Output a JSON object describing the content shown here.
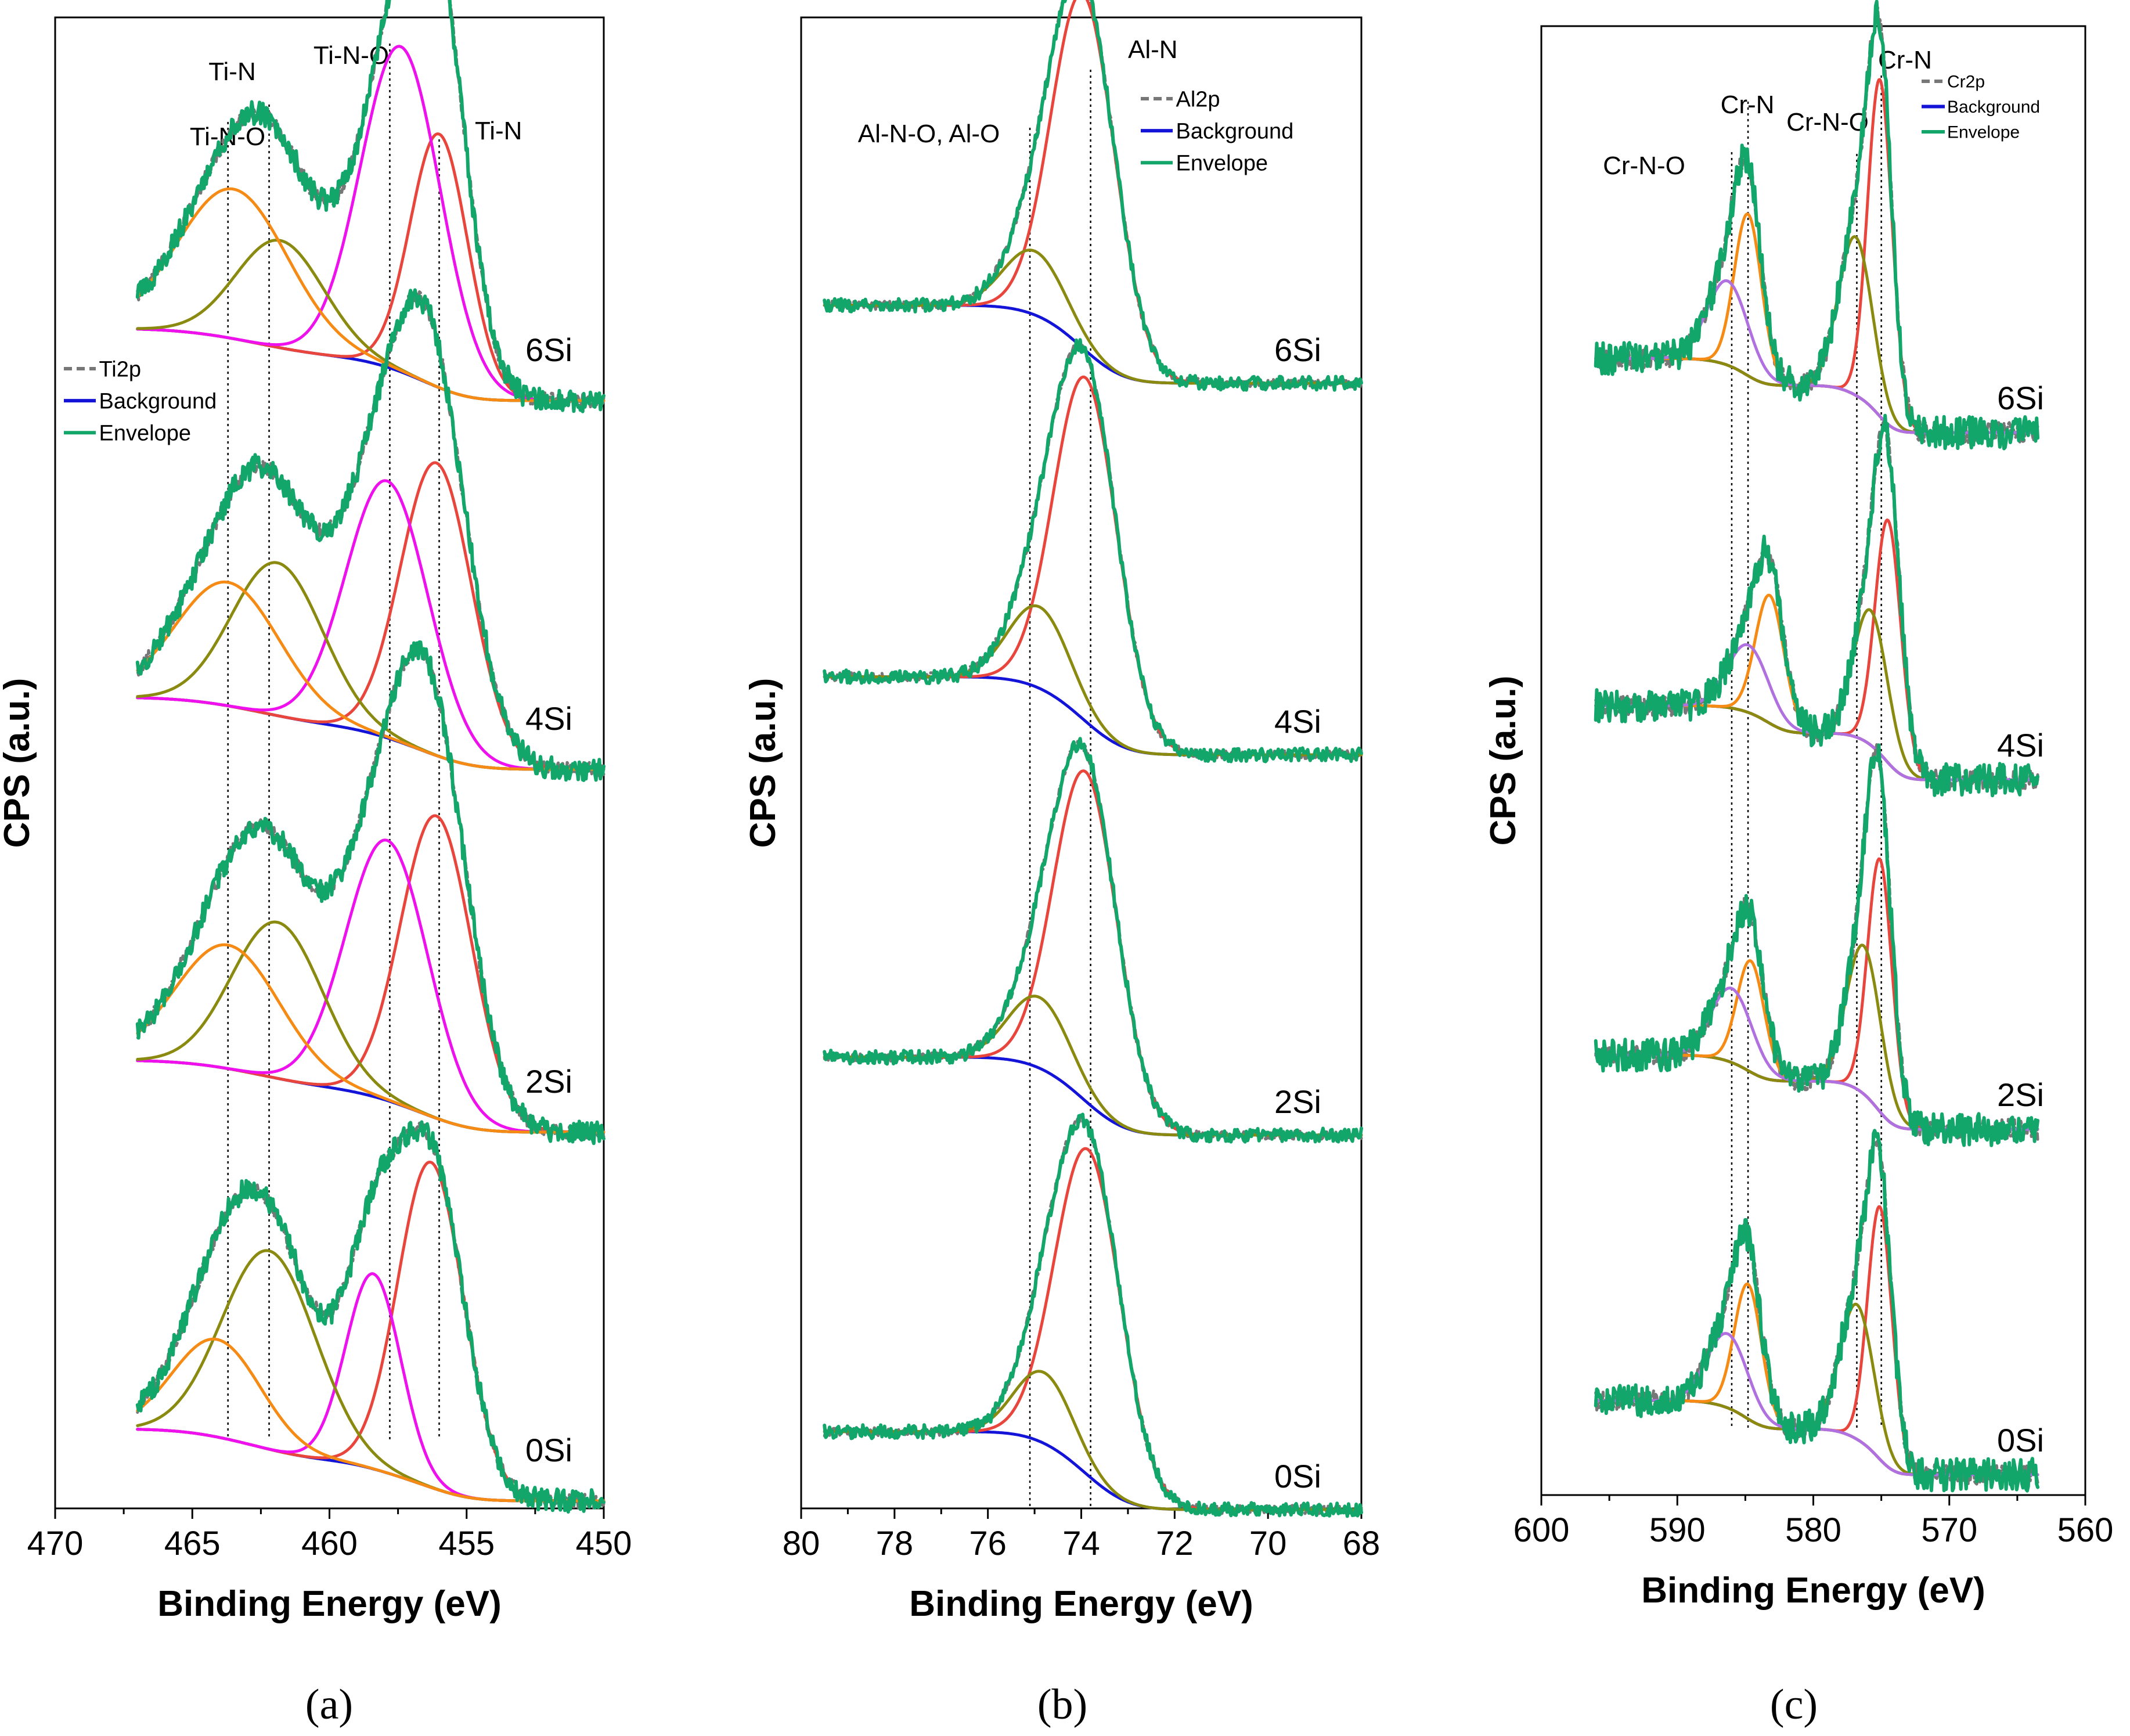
{
  "chart_data": [
    {
      "id": "a",
      "type": "line",
      "caption": "(a)",
      "xlabel": "Binding Energy (eV)",
      "ylabel": "CPS (a.u.)",
      "xlim": [
        470,
        450
      ],
      "xticks": [
        470,
        465,
        460,
        455,
        450
      ],
      "xtick_labels": [
        "470",
        "465",
        "460",
        "455",
        "450"
      ],
      "legend": [
        {
          "label": "Ti2p",
          "color": "#777777",
          "style": "dashed"
        },
        {
          "label": "Background",
          "color": "#1414d8",
          "style": "solid"
        },
        {
          "label": "Envelope",
          "color": "#12a66a",
          "style": "solid"
        }
      ],
      "annotations": [
        {
          "label": "Ti-N-O",
          "x": 463.7
        },
        {
          "label": "Ti-N",
          "x": 462.2
        },
        {
          "label": "Ti-N-O",
          "x": 457.8
        },
        {
          "label": "Ti-N",
          "x": 456.0
        }
      ],
      "range": [
        467.0,
        450.0
      ],
      "noise": 0.022,
      "samples": [
        {
          "label": "6Si",
          "peaks": [
            {
              "center": 456.0,
              "height": 0.78,
              "width": 1.05,
              "color": "#e8453c"
            },
            {
              "center": 457.4,
              "height": 1.0,
              "width": 1.45,
              "color": "#ee11ee"
            },
            {
              "center": 461.8,
              "height": 0.33,
              "width": 1.6,
              "color": "#8a8a10"
            },
            {
              "center": 463.5,
              "height": 0.46,
              "width": 2.0,
              "color": "#f58a14"
            }
          ]
        },
        {
          "label": "4Si",
          "peaks": [
            {
              "center": 456.1,
              "height": 0.9,
              "width": 1.3,
              "color": "#e8453c"
            },
            {
              "center": 457.9,
              "height": 0.79,
              "width": 1.5,
              "color": "#ee11ee"
            },
            {
              "center": 461.9,
              "height": 0.47,
              "width": 1.65,
              "color": "#8a8a10"
            },
            {
              "center": 463.7,
              "height": 0.38,
              "width": 1.9,
              "color": "#f58a14"
            }
          ]
        },
        {
          "label": "2Si",
          "peaks": [
            {
              "center": 456.1,
              "height": 0.93,
              "width": 1.3,
              "color": "#e8453c"
            },
            {
              "center": 457.9,
              "height": 0.8,
              "width": 1.5,
              "color": "#ee11ee"
            },
            {
              "center": 461.9,
              "height": 0.48,
              "width": 1.65,
              "color": "#8a8a10"
            },
            {
              "center": 463.7,
              "height": 0.38,
              "width": 1.9,
              "color": "#f58a14"
            }
          ]
        },
        {
          "label": "0Si",
          "peaks": [
            {
              "center": 456.3,
              "height": 1.0,
              "width": 1.2,
              "color": "#e8453c"
            },
            {
              "center": 458.4,
              "height": 0.6,
              "width": 1.0,
              "color": "#ee11ee"
            },
            {
              "center": 462.2,
              "height": 0.61,
              "width": 1.7,
              "color": "#8a8a10"
            },
            {
              "center": 464.1,
              "height": 0.3,
              "width": 1.6,
              "color": "#f58a14"
            }
          ]
        }
      ]
    },
    {
      "id": "b",
      "type": "line",
      "caption": "(b)",
      "xlabel": "Binding Energy (eV)",
      "ylabel": "CPS (a.u.)",
      "xlim": [
        80,
        68
      ],
      "xticks": [
        80,
        78,
        76,
        74,
        72,
        70,
        68
      ],
      "xtick_labels": [
        "80",
        "78",
        "76",
        "74",
        "72",
        "70",
        "68"
      ],
      "legend": [
        {
          "label": "Al2p",
          "color": "#777777",
          "style": "dashed"
        },
        {
          "label": "Background",
          "color": "#1414d8",
          "style": "solid"
        },
        {
          "label": "Envelope",
          "color": "#12a66a",
          "style": "solid"
        }
      ],
      "annotations": [
        {
          "label": "Al-N-O, Al-O",
          "x": 75.1
        },
        {
          "label": "Al-N",
          "x": 73.8
        }
      ],
      "range": [
        79.5,
        68.0
      ],
      "noise": 0.012,
      "samples": [
        {
          "label": "6Si",
          "peaks": [
            {
              "center": 73.95,
              "height": 1.0,
              "width": 0.68,
              "color": "#e8453c"
            },
            {
              "center": 75.0,
              "height": 0.18,
              "width": 0.65,
              "color": "#8a8a10"
            }
          ]
        },
        {
          "label": "4Si",
          "peaks": [
            {
              "center": 73.9,
              "height": 0.97,
              "width": 0.68,
              "color": "#e8453c"
            },
            {
              "center": 74.9,
              "height": 0.23,
              "width": 0.65,
              "color": "#8a8a10"
            }
          ]
        },
        {
          "label": "2Si",
          "peaks": [
            {
              "center": 73.9,
              "height": 0.93,
              "width": 0.68,
              "color": "#e8453c"
            },
            {
              "center": 74.9,
              "height": 0.2,
              "width": 0.65,
              "color": "#8a8a10"
            }
          ]
        },
        {
          "label": "0Si",
          "peaks": [
            {
              "center": 73.85,
              "height": 0.92,
              "width": 0.7,
              "color": "#e8453c"
            },
            {
              "center": 74.8,
              "height": 0.2,
              "width": 0.62,
              "color": "#8a8a10"
            }
          ]
        }
      ]
    },
    {
      "id": "c",
      "type": "line",
      "caption": "(c)",
      "xlabel": "Binding Energy (eV)",
      "ylabel": "CPS (a.u.)",
      "xlim": [
        600,
        560
      ],
      "xticks": [
        600,
        590,
        580,
        570,
        560
      ],
      "xtick_labels": [
        "600",
        "590",
        "580",
        "570",
        "560"
      ],
      "legend": [
        {
          "label": "Cr2p",
          "color": "#777777",
          "style": "dashed"
        },
        {
          "label": "Background",
          "color": "#1414d8",
          "style": "solid"
        },
        {
          "label": "Envelope",
          "color": "#12a66a",
          "style": "solid"
        }
      ],
      "annotations": [
        {
          "label": "Cr-N-O",
          "x": 586.0
        },
        {
          "label": "Cr-N",
          "x": 584.8
        },
        {
          "label": "Cr-N-O",
          "x": 576.8
        },
        {
          "label": "Cr-N",
          "x": 575.0
        }
      ],
      "range": [
        596.0,
        563.5
      ],
      "noise": 0.03,
      "samples": [
        {
          "label": "6Si",
          "peaks": [
            {
              "center": 575.1,
              "height": 1.0,
              "width": 0.9,
              "color": "#e8453c"
            },
            {
              "center": 576.9,
              "height": 0.47,
              "width": 1.25,
              "color": "#8a8a10"
            },
            {
              "center": 584.8,
              "height": 0.48,
              "width": 1.0,
              "color": "#f58a14"
            },
            {
              "center": 586.3,
              "height": 0.25,
              "width": 1.5,
              "color": "#b070e0"
            }
          ]
        },
        {
          "label": "4Si",
          "peaks": [
            {
              "center": 574.5,
              "height": 0.72,
              "width": 0.95,
              "color": "#e8453c"
            },
            {
              "center": 575.8,
              "height": 0.4,
              "width": 1.25,
              "color": "#8a8a10"
            },
            {
              "center": 583.2,
              "height": 0.38,
              "width": 1.05,
              "color": "#f58a14"
            },
            {
              "center": 584.8,
              "height": 0.2,
              "width": 1.5,
              "color": "#b070e0"
            }
          ]
        },
        {
          "label": "2Si",
          "peaks": [
            {
              "center": 575.1,
              "height": 0.75,
              "width": 0.9,
              "color": "#e8453c"
            },
            {
              "center": 576.3,
              "height": 0.44,
              "width": 1.25,
              "color": "#8a8a10"
            },
            {
              "center": 584.6,
              "height": 0.33,
              "width": 1.0,
              "color": "#f58a14"
            },
            {
              "center": 586.0,
              "height": 0.22,
              "width": 1.5,
              "color": "#b070e0"
            }
          ]
        },
        {
          "label": "0Si",
          "peaks": [
            {
              "center": 575.1,
              "height": 0.75,
              "width": 0.9,
              "color": "#e8453c"
            },
            {
              "center": 576.8,
              "height": 0.4,
              "width": 1.25,
              "color": "#8a8a10"
            },
            {
              "center": 584.8,
              "height": 0.4,
              "width": 1.0,
              "color": "#f58a14"
            },
            {
              "center": 586.3,
              "height": 0.22,
              "width": 1.5,
              "color": "#b070e0"
            }
          ]
        }
      ]
    }
  ],
  "colors": {
    "background_curve": "#1414d8",
    "envelope": "#12a66a",
    "raw": "#777777"
  }
}
